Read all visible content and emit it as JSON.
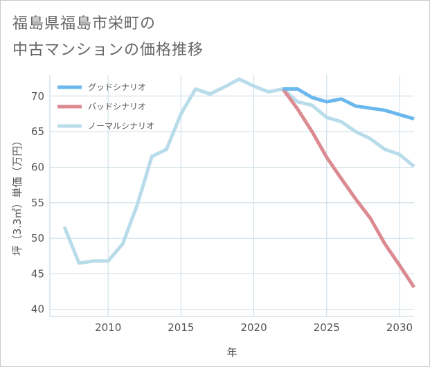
{
  "title": {
    "line1": "福島県福島市栄町の",
    "line2": "中古マンションの価格推移"
  },
  "colors": {
    "good": "#6ab8ee",
    "bad": "#dc8a92",
    "normal": "#b8dcea",
    "grid": "#c8dbe6"
  },
  "chart_data": {
    "type": "line",
    "title": "福島県福島市栄町の中古マンションの価格推移",
    "xlabel": "年",
    "ylabel": "坪（3.3㎡）単価（万円）",
    "xlim": [
      2006,
      2031
    ],
    "ylim": [
      39,
      73
    ],
    "x_ticks": [
      2010,
      2015,
      2020,
      2025,
      2030
    ],
    "y_ticks": [
      40,
      45,
      50,
      55,
      60,
      65,
      70
    ],
    "legend_position": "top-left",
    "series": [
      {
        "name": "グッドシナリオ",
        "color_key": "good",
        "x": [
          2022,
          2023,
          2024,
          2025,
          2026,
          2027,
          2028,
          2029,
          2030,
          2031
        ],
        "values": [
          71.0,
          71.0,
          69.8,
          69.2,
          69.6,
          68.6,
          68.3,
          68.0,
          67.4,
          66.8
        ]
      },
      {
        "name": "バッドシナリオ",
        "color_key": "bad",
        "x": [
          2022,
          2023,
          2024,
          2025,
          2026,
          2027,
          2028,
          2029,
          2030,
          2031
        ],
        "values": [
          71.0,
          68.2,
          65.0,
          61.4,
          58.4,
          55.5,
          52.8,
          49.2,
          46.2,
          43.1
        ]
      },
      {
        "name": "ノーマルシナリオ",
        "color_key": "normal",
        "x": [
          2007,
          2008,
          2009,
          2010,
          2011,
          2012,
          2013,
          2014,
          2015,
          2016,
          2017,
          2018,
          2019,
          2020,
          2021,
          2022,
          2023,
          2024,
          2025,
          2026,
          2027,
          2028,
          2029,
          2030,
          2031
        ],
        "values": [
          51.6,
          46.5,
          46.8,
          46.8,
          49.2,
          54.7,
          61.5,
          62.5,
          67.5,
          71.0,
          70.3,
          71.3,
          72.4,
          71.4,
          70.6,
          71.0,
          69.2,
          68.7,
          67.0,
          66.4,
          65.0,
          64.0,
          62.5,
          61.8,
          60.1
        ]
      }
    ]
  }
}
